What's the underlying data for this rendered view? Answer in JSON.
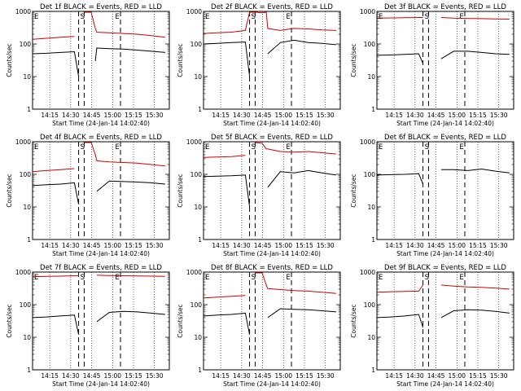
{
  "figure": {
    "legend_text": "BLACK = Events, RED = LLD",
    "xlabel": "Start Time (24-Jan-14 14:02:40)",
    "ylabel": "Counts/sec",
    "x_tick_labels": [
      "14:15",
      "14:30",
      "14:45",
      "15:00",
      "15:15",
      "15:30"
    ],
    "y_tick_labels": [
      "1",
      "10",
      "100",
      "1000"
    ],
    "marker_labels": [
      "E",
      "S",
      "E"
    ],
    "colors": {
      "events": "#000000",
      "lld": "#d00000"
    }
  },
  "chart_data": [
    {
      "type": "line",
      "title": "Det 1f BLACK = Events, RED = LLD",
      "xlabel": "Start Time (24-Jan-14 14:02:40)",
      "ylabel": "Counts/sec",
      "y_scale": "log",
      "ylim": [
        1,
        1000
      ],
      "xlim_minutes": [
        0,
        98
      ],
      "marker_lines_minutes": [
        33,
        37,
        63
      ],
      "gap_minutes": [
        33,
        45
      ],
      "series": [
        {
          "name": "Events",
          "x": [
            0,
            10,
            20,
            30,
            33,
            37,
            45,
            46,
            55,
            65,
            75,
            85,
            95
          ],
          "y": [
            50,
            52,
            55,
            58,
            10,
            null,
            30,
            75,
            72,
            70,
            65,
            60,
            55
          ]
        },
        {
          "name": "LLD",
          "x": [
            0,
            10,
            20,
            30,
            33,
            37,
            42,
            45,
            46,
            55,
            65,
            75,
            85,
            95
          ],
          "y": [
            140,
            150,
            160,
            170,
            null,
            1000,
            1000,
            300,
            230,
            220,
            210,
            200,
            180,
            160
          ]
        }
      ]
    },
    {
      "type": "line",
      "title": "Det 2f BLACK = Events, RED = LLD",
      "xlabel": "Start Time (24-Jan-14 14:02:40)",
      "ylabel": "Counts/sec",
      "y_scale": "log",
      "ylim": [
        1,
        1000
      ],
      "xlim_minutes": [
        0,
        98
      ],
      "marker_lines_minutes": [
        33,
        37,
        63
      ],
      "gap_minutes": [
        33,
        45
      ],
      "series": [
        {
          "name": "Events",
          "x": [
            0,
            10,
            20,
            30,
            33,
            45,
            46,
            55,
            65,
            75,
            85,
            95
          ],
          "y": [
            100,
            105,
            110,
            115,
            10,
            null,
            50,
            110,
            130,
            110,
            105,
            95
          ]
        },
        {
          "name": "LLD",
          "x": [
            0,
            10,
            20,
            30,
            33,
            38,
            42,
            45,
            46,
            55,
            65,
            75,
            85,
            95
          ],
          "y": [
            210,
            220,
            230,
            260,
            1000,
            1000,
            900,
            950,
            300,
            260,
            300,
            290,
            270,
            260
          ]
        }
      ]
    },
    {
      "type": "line",
      "title": "Det 3f BLACK = Events, RED = LLD",
      "xlabel": "Start Time (24-Jan-14 14:02:40)",
      "ylabel": "Counts/sec",
      "y_scale": "log",
      "ylim": [
        1,
        1000
      ],
      "xlim_minutes": [
        0,
        98
      ],
      "marker_lines_minutes": [
        33,
        37,
        63
      ],
      "gap_minutes": [
        33,
        45
      ],
      "series": [
        {
          "name": "Events",
          "x": [
            0,
            10,
            20,
            30,
            33,
            45,
            46,
            55,
            65,
            75,
            85,
            95
          ],
          "y": [
            45,
            46,
            48,
            50,
            25,
            null,
            35,
            60,
            60,
            55,
            50,
            48
          ]
        },
        {
          "name": "LLD",
          "x": [
            0,
            10,
            20,
            30,
            33,
            45,
            46,
            55,
            65,
            75,
            85,
            95
          ],
          "y": [
            620,
            630,
            640,
            650,
            650,
            null,
            650,
            620,
            610,
            600,
            590,
            580
          ]
        }
      ]
    },
    {
      "type": "line",
      "title": "Det 4f BLACK = Events, RED = LLD",
      "xlabel": "Start Time (24-Jan-14 14:02:40)",
      "ylabel": "Counts/sec",
      "y_scale": "log",
      "ylim": [
        1,
        1000
      ],
      "xlim_minutes": [
        0,
        98
      ],
      "marker_lines_minutes": [
        33,
        37,
        63
      ],
      "gap_minutes": [
        33,
        45
      ],
      "series": [
        {
          "name": "Events",
          "x": [
            0,
            10,
            20,
            30,
            33,
            45,
            46,
            55,
            65,
            75,
            85,
            95
          ],
          "y": [
            45,
            48,
            50,
            55,
            12,
            null,
            30,
            62,
            60,
            58,
            55,
            50
          ]
        },
        {
          "name": "LLD",
          "x": [
            0,
            10,
            20,
            30,
            33,
            37,
            42,
            45,
            46,
            55,
            65,
            75,
            85,
            95
          ],
          "y": [
            120,
            130,
            140,
            150,
            null,
            1000,
            1000,
            400,
            260,
            240,
            230,
            220,
            200,
            180
          ]
        }
      ]
    },
    {
      "type": "line",
      "title": "Det 5f BLACK = Events, RED = LLD",
      "xlabel": "Start Time (24-Jan-14 14:02:40)",
      "ylabel": "Counts/sec",
      "y_scale": "log",
      "ylim": [
        1,
        1000
      ],
      "xlim_minutes": [
        0,
        98
      ],
      "marker_lines_minutes": [
        33,
        37,
        63
      ],
      "gap_minutes": [
        33,
        45
      ],
      "series": [
        {
          "name": "Events",
          "x": [
            0,
            10,
            20,
            30,
            33,
            45,
            46,
            55,
            65,
            75,
            85,
            95
          ],
          "y": [
            85,
            88,
            90,
            95,
            10,
            null,
            40,
            120,
            110,
            130,
            110,
            95
          ]
        },
        {
          "name": "LLD",
          "x": [
            0,
            10,
            20,
            30,
            33,
            37,
            42,
            45,
            46,
            55,
            65,
            75,
            85,
            95
          ],
          "y": [
            330,
            340,
            350,
            380,
            null,
            1000,
            900,
            600,
            600,
            500,
            480,
            500,
            460,
            420
          ]
        }
      ]
    },
    {
      "type": "line",
      "title": "Det 6f BLACK = Events, RED = LLD",
      "xlabel": "Start Time (24-Jan-14 14:02:40)",
      "ylabel": "Counts/sec",
      "y_scale": "log",
      "ylim": [
        1,
        1000
      ],
      "xlim_minutes": [
        0,
        98
      ],
      "marker_lines_minutes": [
        33,
        37,
        63
      ],
      "gap_minutes": [
        33,
        45
      ],
      "series": [
        {
          "name": "Events",
          "x": [
            0,
            10,
            20,
            30,
            33,
            45,
            46,
            55,
            65,
            75,
            85,
            95
          ],
          "y": [
            95,
            98,
            100,
            105,
            50,
            null,
            140,
            140,
            130,
            145,
            125,
            110
          ]
        }
      ]
    },
    {
      "type": "line",
      "title": "Det 7f BLACK = Events, RED = LLD",
      "xlabel": "Start Time (24-Jan-14 14:02:40)",
      "ylabel": "Counts/sec",
      "y_scale": "log",
      "ylim": [
        1,
        1000
      ],
      "xlim_minutes": [
        0,
        98
      ],
      "marker_lines_minutes": [
        33,
        37,
        63
      ],
      "gap_minutes": [
        33,
        45
      ],
      "series": [
        {
          "name": "Events",
          "x": [
            0,
            10,
            20,
            30,
            33,
            45,
            46,
            55,
            65,
            75,
            85,
            95
          ],
          "y": [
            40,
            42,
            45,
            48,
            12,
            null,
            30,
            58,
            62,
            60,
            55,
            50
          ]
        },
        {
          "name": "LLD",
          "x": [
            0,
            10,
            20,
            30,
            33,
            45,
            46,
            55,
            65,
            75,
            85,
            95
          ],
          "y": [
            720,
            740,
            750,
            770,
            780,
            null,
            800,
            780,
            770,
            760,
            750,
            740
          ]
        }
      ]
    },
    {
      "type": "line",
      "title": "Det 8f BLACK = Events, RED = LLD",
      "xlabel": "Start Time (24-Jan-14 14:02:40)",
      "ylabel": "Counts/sec",
      "y_scale": "log",
      "ylim": [
        1,
        1000
      ],
      "xlim_minutes": [
        0,
        98
      ],
      "marker_lines_minutes": [
        33,
        37,
        63
      ],
      "gap_minutes": [
        33,
        45
      ],
      "series": [
        {
          "name": "Events",
          "x": [
            0,
            10,
            20,
            30,
            33,
            45,
            46,
            55,
            65,
            75,
            85,
            95
          ],
          "y": [
            45,
            48,
            50,
            55,
            12,
            null,
            40,
            75,
            72,
            70,
            65,
            60
          ]
        },
        {
          "name": "LLD",
          "x": [
            0,
            10,
            20,
            30,
            33,
            37,
            42,
            45,
            46,
            55,
            65,
            75,
            85,
            95
          ],
          "y": [
            160,
            170,
            180,
            190,
            null,
            1000,
            1000,
            400,
            310,
            290,
            270,
            260,
            240,
            220
          ]
        }
      ]
    },
    {
      "type": "line",
      "title": "Det 9f BLACK = Events, RED = LLD",
      "xlabel": "Start Time (24-Jan-14 14:02:40)",
      "ylabel": "Counts/sec",
      "y_scale": "log",
      "ylim": [
        1,
        1000
      ],
      "xlim_minutes": [
        0,
        98
      ],
      "marker_lines_minutes": [
        33,
        37,
        63
      ],
      "gap_minutes": [
        33,
        45
      ],
      "series": [
        {
          "name": "Events",
          "x": [
            0,
            10,
            20,
            30,
            33,
            45,
            46,
            55,
            65,
            75,
            85,
            95
          ],
          "y": [
            40,
            42,
            45,
            50,
            20,
            null,
            40,
            65,
            70,
            68,
            62,
            55
          ]
        },
        {
          "name": "LLD",
          "x": [
            0,
            10,
            20,
            30,
            33,
            45,
            46,
            55,
            65,
            75,
            85,
            95
          ],
          "y": [
            240,
            250,
            255,
            260,
            400,
            null,
            400,
            370,
            350,
            340,
            320,
            300
          ]
        }
      ]
    }
  ]
}
